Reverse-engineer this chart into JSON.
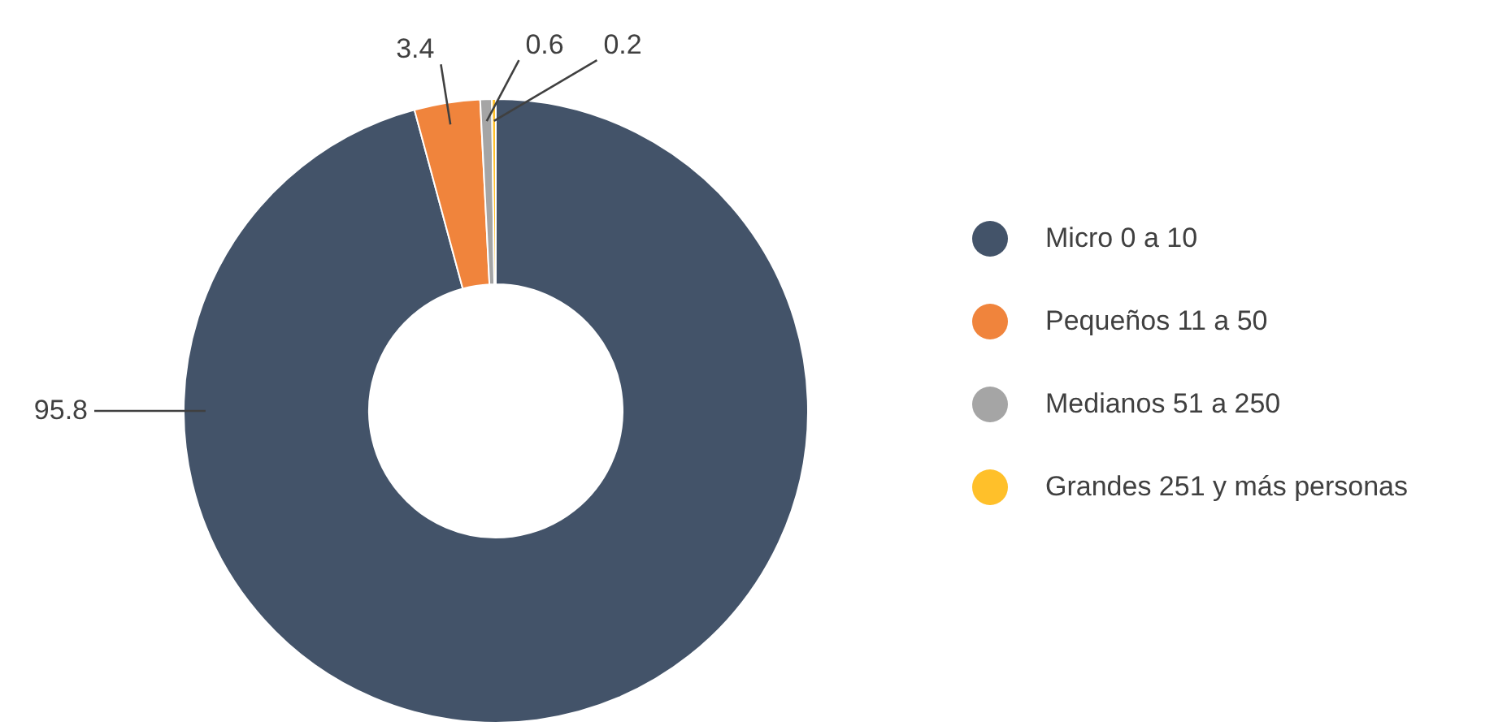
{
  "chart_data": {
    "type": "donut",
    "categories": [
      "Micro 0 a 10",
      "Pequeños 11 a 50",
      "Medianos 51 a 250",
      "Grandes 251 y más personas"
    ],
    "values": [
      95.8,
      3.4,
      0.6,
      0.2
    ],
    "colors": [
      "#435369",
      "#f0843c",
      "#a5a5a5",
      "#ffc02a"
    ],
    "data_labels": true,
    "legend": "right"
  }
}
